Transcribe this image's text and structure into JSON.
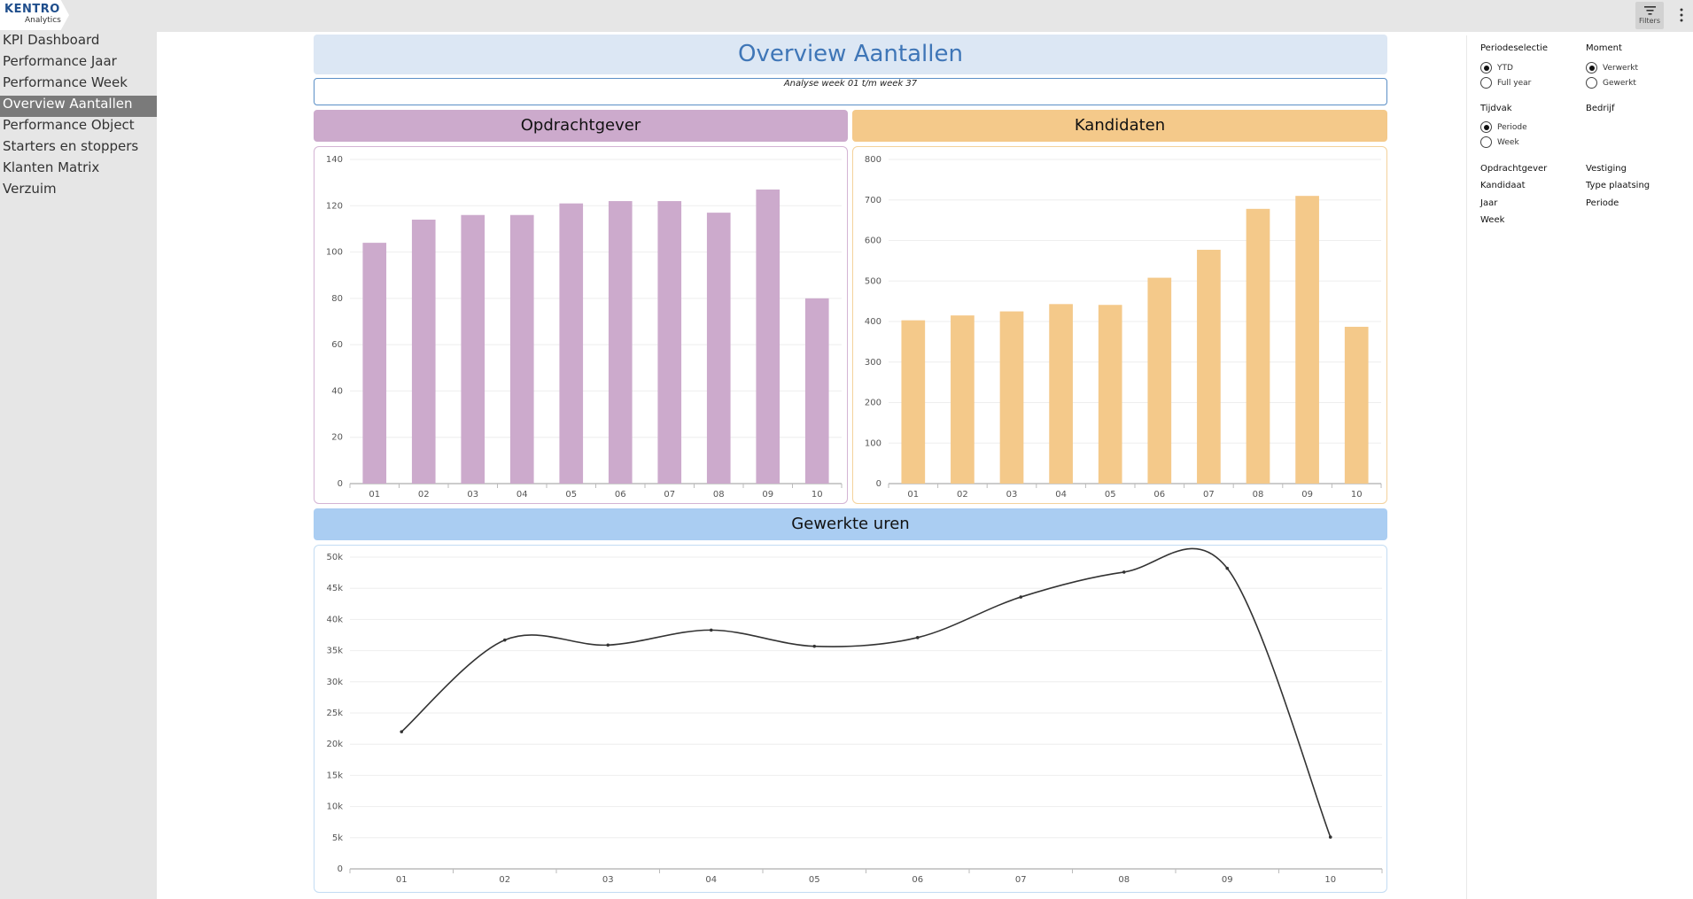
{
  "app": {
    "logo_line1": "KENTRO",
    "logo_line2": "Analytics",
    "filters_label": "Filters"
  },
  "sidebar": {
    "items": [
      {
        "label": "KPI Dashboard",
        "active": false
      },
      {
        "label": "Performance Jaar",
        "active": false
      },
      {
        "label": "Performance Week",
        "active": false
      },
      {
        "label": "Overview Aantallen",
        "active": true
      },
      {
        "label": "Performance Object",
        "active": false
      },
      {
        "label": "Starters en stoppers",
        "active": false
      },
      {
        "label": "Klanten Matrix",
        "active": false
      },
      {
        "label": "Verzuim",
        "active": false
      }
    ]
  },
  "main": {
    "title": "Overview Aantallen",
    "analyse": "Analyse week 01 t/m week 37"
  },
  "filters": {
    "periodeselectie": {
      "title": "Periodeselectie",
      "options": [
        "YTD",
        "Full year"
      ],
      "selected": 0
    },
    "moment": {
      "title": "Moment",
      "options": [
        "Verwerkt",
        "Gewerkt"
      ],
      "selected": 0
    },
    "tijdvak": {
      "title": "Tijdvak",
      "options": [
        "Periode",
        "Week"
      ],
      "selected": 0
    },
    "bedrijf": "Bedrijf",
    "fields": [
      "Opdrachtgever",
      "Vestiging",
      "Kandidaat",
      "Type plaatsing",
      "Jaar",
      "Periode",
      "Week"
    ]
  },
  "colors": {
    "opdrachtgever_bar": "#ccaacc",
    "kandidaten_bar": "#f4c98a",
    "line": "#333333",
    "title_text": "#3f76b7"
  },
  "chart_data": [
    {
      "type": "bar",
      "title": "Opdrachtgever",
      "categories": [
        "01",
        "02",
        "03",
        "04",
        "05",
        "06",
        "07",
        "08",
        "09",
        "10"
      ],
      "values": [
        104,
        114,
        116,
        116,
        121,
        122,
        122,
        117,
        127,
        80
      ],
      "ylim": [
        0,
        140
      ],
      "yticks": [
        0,
        20,
        40,
        60,
        80,
        100,
        120,
        140
      ],
      "ytick_labels": [
        "0",
        "20",
        "40",
        "60",
        "80",
        "100",
        "120",
        "140"
      ],
      "grid": true
    },
    {
      "type": "bar",
      "title": "Kandidaten",
      "categories": [
        "01",
        "02",
        "03",
        "04",
        "05",
        "06",
        "07",
        "08",
        "09",
        "10"
      ],
      "values": [
        403,
        415,
        425,
        443,
        441,
        508,
        577,
        678,
        710,
        387
      ],
      "ylim": [
        0,
        800
      ],
      "yticks": [
        0,
        100,
        200,
        300,
        400,
        500,
        600,
        700,
        800
      ],
      "ytick_labels": [
        "0",
        "100",
        "200",
        "300",
        "400",
        "500",
        "600",
        "700",
        "800"
      ],
      "grid": true
    },
    {
      "type": "line",
      "title": "Gewerkte uren",
      "categories": [
        "01",
        "02",
        "03",
        "04",
        "05",
        "06",
        "07",
        "08",
        "09",
        "10"
      ],
      "values": [
        22000,
        36700,
        35900,
        38300,
        35700,
        37100,
        43600,
        47600,
        48200,
        5100
      ],
      "ylim": [
        0,
        50000
      ],
      "yticks": [
        0,
        5000,
        10000,
        15000,
        20000,
        25000,
        30000,
        35000,
        40000,
        45000,
        50000
      ],
      "ytick_labels": [
        "0",
        "5k",
        "10k",
        "15k",
        "20k",
        "25k",
        "30k",
        "35k",
        "40k",
        "45k",
        "50k"
      ],
      "grid": true
    }
  ]
}
